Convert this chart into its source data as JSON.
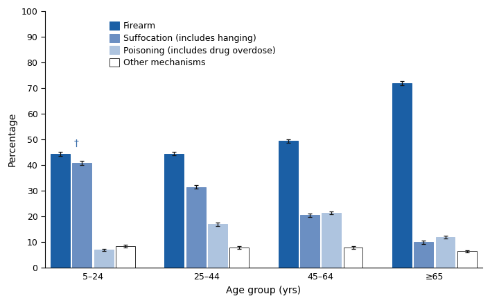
{
  "age_groups": [
    "5–24",
    "25–44",
    "45–64",
    "≥65"
  ],
  "mechanisms": [
    "Firearm",
    "Suffocation (includes hanging)",
    "Poisoning (includes drug overdose)",
    "Other mechanisms"
  ],
  "values": [
    [
      44.5,
      41.0,
      7.0,
      8.5
    ],
    [
      44.5,
      31.5,
      17.0,
      8.0
    ],
    [
      49.5,
      20.5,
      21.5,
      8.0
    ],
    [
      72.0,
      10.0,
      12.0,
      6.5
    ]
  ],
  "errors": [
    [
      0.8,
      0.8,
      0.5,
      0.5
    ],
    [
      0.7,
      0.7,
      0.6,
      0.5
    ],
    [
      0.7,
      0.6,
      0.6,
      0.5
    ],
    [
      0.8,
      0.6,
      0.6,
      0.4
    ]
  ],
  "bar_colors": [
    "#1b5fa5",
    "#6b8fc2",
    "#aec4df",
    "#ffffff"
  ],
  "bar_edgecolors": [
    "#1b5fa5",
    "#6b8fc2",
    "#aec4df",
    "#333333"
  ],
  "error_color": "#111111",
  "ylabel": "Percentage",
  "xlabel": "Age group (yrs)",
  "ylim": [
    0,
    100
  ],
  "yticks": [
    0,
    10,
    20,
    30,
    40,
    50,
    60,
    70,
    80,
    90,
    100
  ],
  "legend_labels": [
    "Firearm",
    "Suffocation (includes hanging)",
    "Poisoning (includes drug overdose)",
    "Other mechanisms"
  ],
  "legend_colors": [
    "#1b5fa5",
    "#6b8fc2",
    "#aec4df",
    "#ffffff"
  ],
  "legend_edgecolors": [
    "#1b5fa5",
    "#6b8fc2",
    "#aec4df",
    "#333333"
  ],
  "bar_width": 0.17,
  "annotation": "†",
  "annotation_fontsize": 10,
  "annotation_color": "#3a6eaa",
  "text_color": "#000000",
  "axis_label_fontsize": 10,
  "tick_label_fontsize": 9,
  "legend_fontsize": 9
}
